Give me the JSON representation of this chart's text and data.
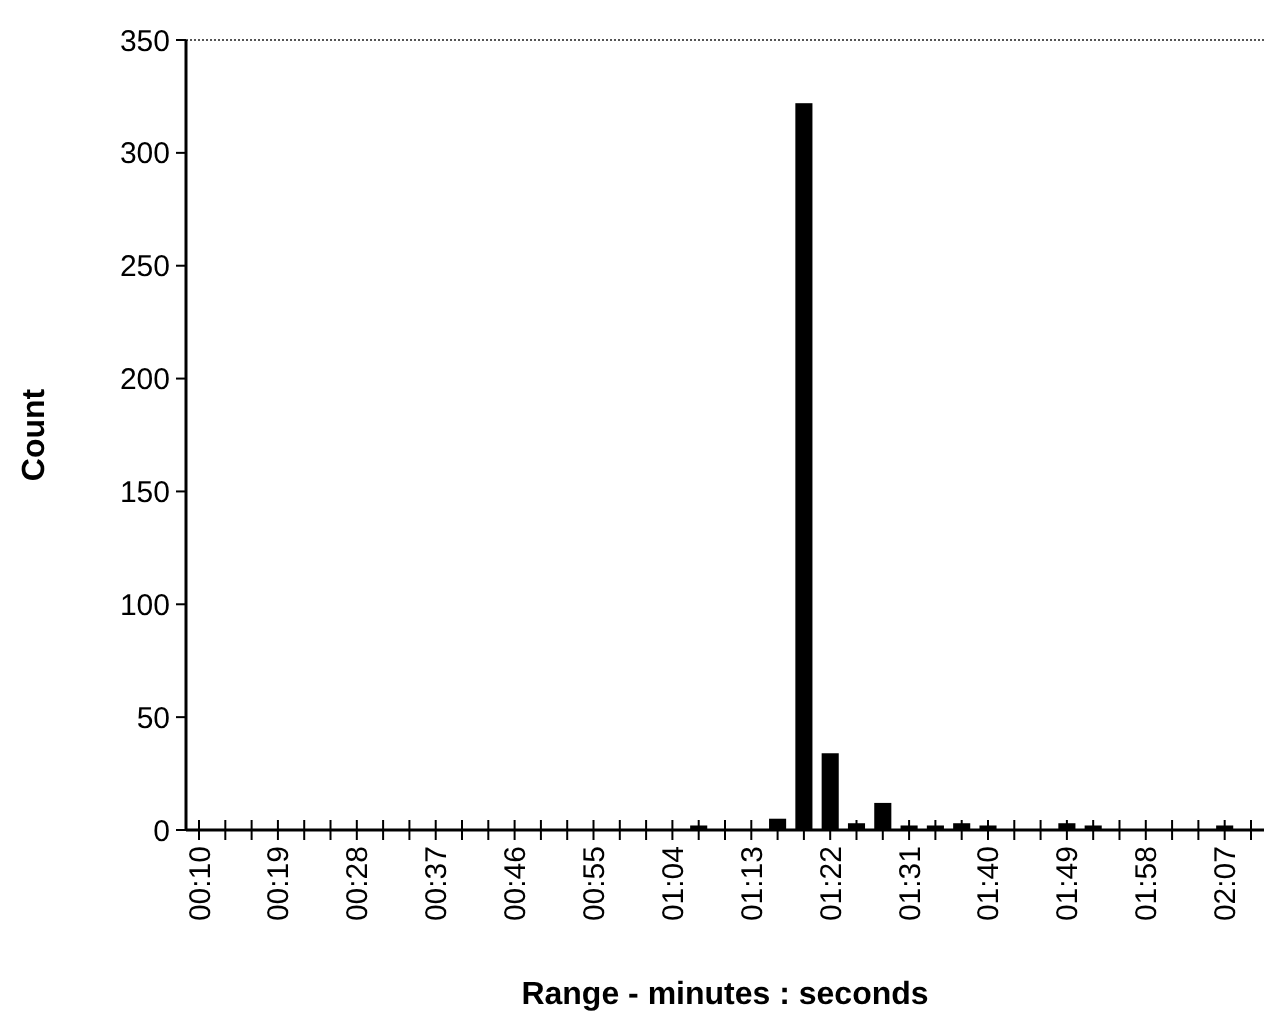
{
  "chart_data": {
    "type": "bar",
    "xlabel": "Range - minutes : seconds",
    "ylabel": "Count",
    "categories": [
      "00:10",
      null,
      null,
      "00:19",
      null,
      null,
      "00:28",
      null,
      null,
      "00:37",
      null,
      null,
      "00:46",
      null,
      null,
      "00:55",
      null,
      null,
      "01:04",
      null,
      null,
      "01:13",
      null,
      null,
      "01:22",
      null,
      null,
      "01:31",
      null,
      null,
      "01:40",
      null,
      null,
      "01:49",
      null,
      null,
      "01:58",
      null,
      null,
      "02:07",
      null
    ],
    "values": [
      0,
      0,
      0,
      0,
      0,
      0,
      0,
      0,
      0,
      0,
      0,
      0,
      0,
      0,
      0,
      0,
      0,
      0,
      0,
      2,
      0,
      0,
      5,
      322,
      34,
      3,
      12,
      2,
      2,
      3,
      2,
      0,
      0,
      3,
      2,
      0,
      0,
      0,
      0,
      2,
      0
    ],
    "color": "#000000",
    "ylim": [
      0,
      350
    ],
    "yticks": [
      0,
      50,
      100,
      150,
      200,
      250,
      300,
      350
    ],
    "grid": false
  }
}
